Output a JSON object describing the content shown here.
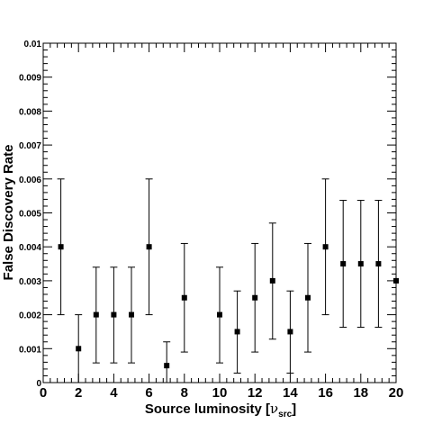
{
  "chart_data": {
    "type": "scatter",
    "title": "",
    "xlabel": "Source luminosity [",
    "xlabel_symbol": "ν",
    "xlabel_subscript": "src",
    "xlabel_close": "]",
    "ylabel": "False Discovery Rate",
    "xlim": [
      0,
      20
    ],
    "ylim": [
      0,
      0.01
    ],
    "x_ticks": [
      "0",
      "2",
      "4",
      "6",
      "8",
      "10",
      "12",
      "14",
      "16",
      "18",
      "20"
    ],
    "y_ticks": [
      "0",
      "0.001",
      "0.002",
      "0.003",
      "0.004",
      "0.005",
      "0.006",
      "0.007",
      "0.008",
      "0.009",
      "0.01"
    ],
    "grid": false,
    "marker_color": "#000000",
    "points": [
      {
        "x": 1,
        "y": 0.004,
        "ylow": 0.002,
        "yhigh": 0.006
      },
      {
        "x": 2,
        "y": 0.001,
        "ylow": 0.0,
        "yhigh": 0.002
      },
      {
        "x": 3,
        "y": 0.002,
        "ylow": 0.00058,
        "yhigh": 0.0034
      },
      {
        "x": 4,
        "y": 0.002,
        "ylow": 0.00058,
        "yhigh": 0.0034
      },
      {
        "x": 5,
        "y": 0.002,
        "ylow": 0.00058,
        "yhigh": 0.0034
      },
      {
        "x": 6,
        "y": 0.004,
        "ylow": 0.002,
        "yhigh": 0.006
      },
      {
        "x": 7,
        "y": 0.0005,
        "ylow": 0.0,
        "yhigh": 0.0012
      },
      {
        "x": 8,
        "y": 0.0025,
        "ylow": 0.0009,
        "yhigh": 0.0041
      },
      {
        "x": 10,
        "y": 0.002,
        "ylow": 0.00058,
        "yhigh": 0.0034
      },
      {
        "x": 11,
        "y": 0.0015,
        "ylow": 0.00028,
        "yhigh": 0.0027
      },
      {
        "x": 12,
        "y": 0.0025,
        "ylow": 0.0009,
        "yhigh": 0.0041
      },
      {
        "x": 13,
        "y": 0.003,
        "ylow": 0.00128,
        "yhigh": 0.0047
      },
      {
        "x": 14,
        "y": 0.0015,
        "ylow": 0.00028,
        "yhigh": 0.0027
      },
      {
        "x": 15,
        "y": 0.0025,
        "ylow": 0.0009,
        "yhigh": 0.0041
      },
      {
        "x": 16,
        "y": 0.004,
        "ylow": 0.002,
        "yhigh": 0.006
      },
      {
        "x": 17,
        "y": 0.0035,
        "ylow": 0.00163,
        "yhigh": 0.00537
      },
      {
        "x": 18,
        "y": 0.0035,
        "ylow": 0.00163,
        "yhigh": 0.00537
      },
      {
        "x": 19,
        "y": 0.0035,
        "ylow": 0.00163,
        "yhigh": 0.00537
      },
      {
        "x": 20,
        "y": 0.003,
        "ylow": 0.003,
        "yhigh": 0.003
      }
    ]
  }
}
